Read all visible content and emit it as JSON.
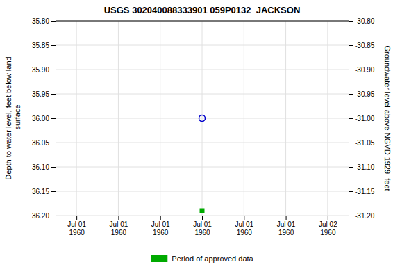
{
  "chart_data": {
    "type": "scatter",
    "title": "USGS 302040088333901 059P0132  JACKSON",
    "y_label": "Depth to water level, feet below land\n surface",
    "y2_label": "Groundwater level above NGVD 1929, feet",
    "categories": [
      "Jul 01\n1960",
      "Jul 01\n1960",
      "Jul 01\n1960",
      "Jul 01\n1960",
      "Jul 01\n1960",
      "Jul 01\n1960",
      "Jul 02\n1960"
    ],
    "series": [
      {
        "color": "#0000cc",
        "marker": "circle-open",
        "values": [
          null,
          null,
          null,
          36.0,
          null,
          null,
          null
        ]
      },
      {
        "name": "Period of approved data",
        "color": "#00aa00",
        "marker": "square",
        "values": [
          null,
          null,
          null,
          36.19,
          null,
          null,
          null
        ]
      }
    ],
    "ylim": [
      36.2,
      35.8
    ],
    "yticks": [
      {
        "value": 35.8,
        "label": "35.80"
      },
      {
        "value": 35.85,
        "label": "35.85"
      },
      {
        "value": 35.9,
        "label": "35.90"
      },
      {
        "value": 35.95,
        "label": "35.95"
      },
      {
        "value": 36.0,
        "label": "36.00"
      },
      {
        "value": 36.05,
        "label": "36.05"
      },
      {
        "value": 36.1,
        "label": "36.10"
      },
      {
        "value": 36.15,
        "label": "36.15"
      },
      {
        "value": 36.2,
        "label": "36.20"
      }
    ],
    "y2lim": [
      -31.2,
      -30.8
    ],
    "y2ticks": [
      {
        "value": -30.8,
        "label": "-30.80"
      },
      {
        "value": -30.85,
        "label": "-30.85"
      },
      {
        "value": -30.9,
        "label": "-30.90"
      },
      {
        "value": -30.95,
        "label": "-30.95"
      },
      {
        "value": -31.0,
        "label": "-31.00"
      },
      {
        "value": -31.05,
        "label": "-31.05"
      },
      {
        "value": -31.1,
        "label": "-31.10"
      },
      {
        "value": -31.15,
        "label": "-31.15"
      },
      {
        "value": -31.2,
        "label": "-31.20"
      }
    ],
    "grid": true,
    "legend": "bottom"
  }
}
